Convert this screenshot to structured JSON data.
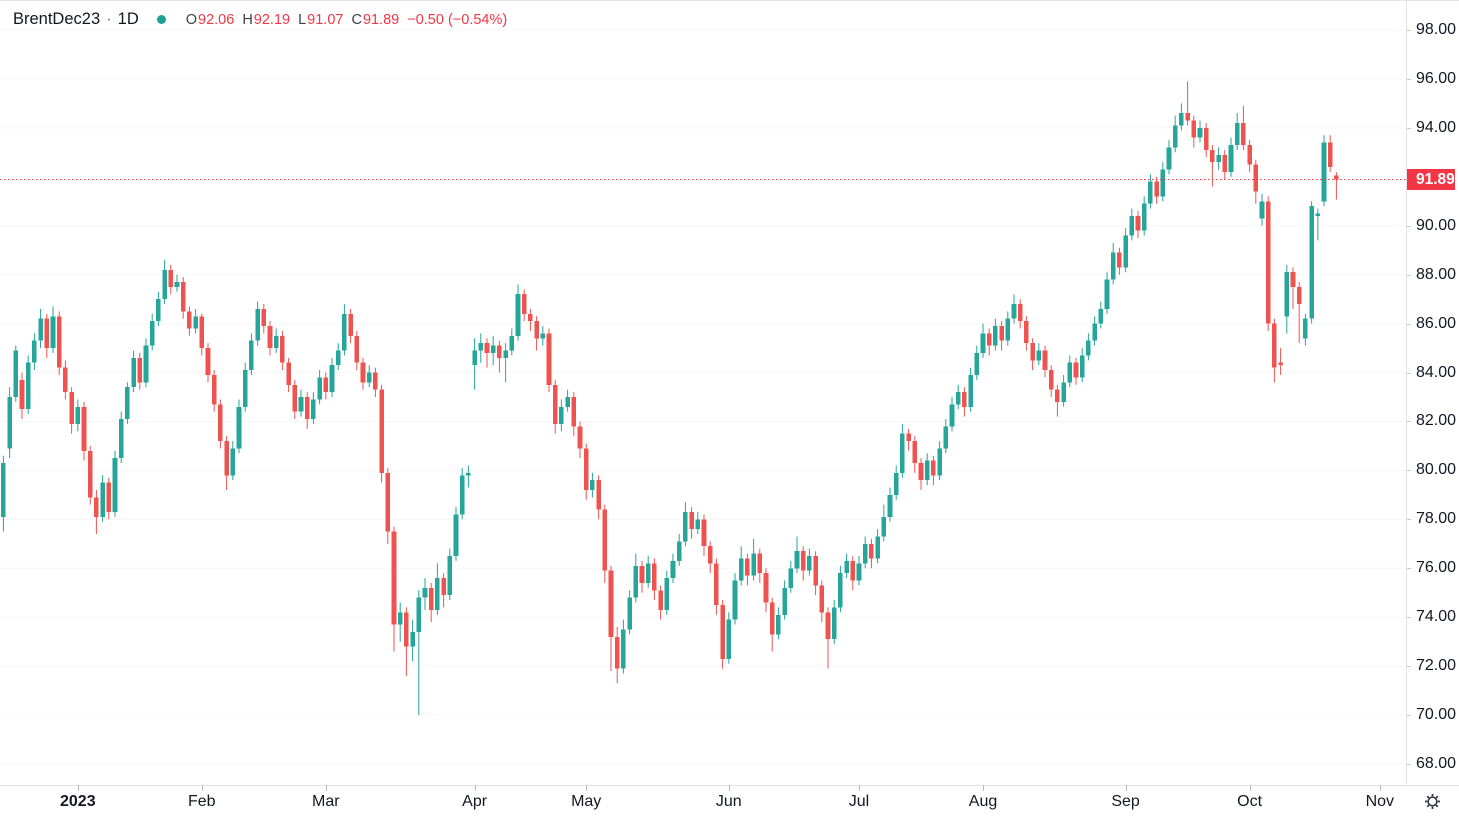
{
  "legend": {
    "title": "BrentDec23",
    "separator": "·",
    "timeframe": "1D",
    "ohlc": {
      "o_label": "O",
      "o_val": "92.06",
      "h_label": "H",
      "h_val": "92.19",
      "l_label": "L",
      "l_val": "91.07",
      "c_label": "C",
      "c_val": "91.89",
      "change": "−0.50",
      "change_pct": "(−0.54%)"
    }
  },
  "colors": {
    "up": "#26a69a",
    "down": "#ef5350",
    "negative_text": "#f23645",
    "last_price_bg": "#f23645",
    "axis_text": "#131722",
    "axis_border": "#e0e3eb",
    "grid": "#f6f7fa"
  },
  "price_axis": {
    "last_price_label": "91.89",
    "visible_levels": [
      98,
      96,
      94,
      90,
      88,
      86,
      84,
      82,
      80,
      78,
      76,
      74,
      72,
      70,
      68
    ]
  },
  "chart_data": {
    "type": "candlestick",
    "title": "BrentDec23 1D candlestick chart",
    "symbol": "BrentDec23",
    "timeframe": "1D",
    "last_price": 91.89,
    "y_axis": {
      "min": 68,
      "max": 98,
      "step": 2
    },
    "x_axis": {
      "ticks": [
        {
          "label": "2023",
          "index": 12,
          "bold": true
        },
        {
          "label": "Feb",
          "index": 32
        },
        {
          "label": "Mar",
          "index": 52
        },
        {
          "label": "Apr",
          "index": 76
        },
        {
          "label": "May",
          "index": 94
        },
        {
          "label": "Jun",
          "index": 117
        },
        {
          "label": "Jul",
          "index": 138
        },
        {
          "label": "Aug",
          "index": 158
        },
        {
          "label": "Sep",
          "index": 181
        },
        {
          "label": "Oct",
          "index": 201
        },
        {
          "label": "Nov",
          "index": 222
        }
      ]
    },
    "candles": [
      [
        78.1,
        80.6,
        77.5,
        80.3
      ],
      [
        80.9,
        83.4,
        80.5,
        83.0
      ],
      [
        83.0,
        85.1,
        82.8,
        84.9
      ],
      [
        83.7,
        84.0,
        82.1,
        82.5
      ],
      [
        82.5,
        84.7,
        82.3,
        84.4
      ],
      [
        84.4,
        85.6,
        84.1,
        85.3
      ],
      [
        85.3,
        86.6,
        85.0,
        86.2
      ],
      [
        86.2,
        86.4,
        84.6,
        85.0
      ],
      [
        85.0,
        86.7,
        84.8,
        86.3
      ],
      [
        86.3,
        86.5,
        83.9,
        84.2
      ],
      [
        84.2,
        84.5,
        82.9,
        83.2
      ],
      [
        83.2,
        83.4,
        81.5,
        81.9
      ],
      [
        81.9,
        82.9,
        81.6,
        82.6
      ],
      [
        82.6,
        82.8,
        80.4,
        80.8
      ],
      [
        80.8,
        81.0,
        78.6,
        78.9
      ],
      [
        78.9,
        79.2,
        77.4,
        78.1
      ],
      [
        78.1,
        79.8,
        77.9,
        79.5
      ],
      [
        79.5,
        79.7,
        78.0,
        78.3
      ],
      [
        78.3,
        80.8,
        78.1,
        80.5
      ],
      [
        80.5,
        82.4,
        80.3,
        82.1
      ],
      [
        82.1,
        83.6,
        81.9,
        83.4
      ],
      [
        83.4,
        84.9,
        83.2,
        84.6
      ],
      [
        84.6,
        84.8,
        83.3,
        83.6
      ],
      [
        83.6,
        85.4,
        83.4,
        85.1
      ],
      [
        85.1,
        86.4,
        84.9,
        86.1
      ],
      [
        86.1,
        87.3,
        85.9,
        87.0
      ],
      [
        87.0,
        88.6,
        86.8,
        88.2
      ],
      [
        88.2,
        88.4,
        87.2,
        87.5
      ],
      [
        87.5,
        88.0,
        87.3,
        87.7
      ],
      [
        87.7,
        87.9,
        86.2,
        86.5
      ],
      [
        86.5,
        86.7,
        85.5,
        85.8
      ],
      [
        85.8,
        86.6,
        85.6,
        86.3
      ],
      [
        86.3,
        86.4,
        84.7,
        85.0
      ],
      [
        85.0,
        85.2,
        83.6,
        83.9
      ],
      [
        83.9,
        84.1,
        82.4,
        82.7
      ],
      [
        82.7,
        82.9,
        80.9,
        81.2
      ],
      [
        81.2,
        81.4,
        79.2,
        79.8
      ],
      [
        79.8,
        81.2,
        79.6,
        80.9
      ],
      [
        80.9,
        82.9,
        80.7,
        82.6
      ],
      [
        82.6,
        84.4,
        82.4,
        84.1
      ],
      [
        84.1,
        85.6,
        83.9,
        85.3
      ],
      [
        85.3,
        86.9,
        85.1,
        86.6
      ],
      [
        86.6,
        86.8,
        85.6,
        85.9
      ],
      [
        85.9,
        86.1,
        84.7,
        85.0
      ],
      [
        85.0,
        85.8,
        84.8,
        85.5
      ],
      [
        85.5,
        85.7,
        84.1,
        84.4
      ],
      [
        84.4,
        84.6,
        83.2,
        83.5
      ],
      [
        83.5,
        83.7,
        82.1,
        82.4
      ],
      [
        82.4,
        83.3,
        82.2,
        83.0
      ],
      [
        83.0,
        83.2,
        81.7,
        82.1
      ],
      [
        82.1,
        83.2,
        81.9,
        82.9
      ],
      [
        82.9,
        84.1,
        82.7,
        83.8
      ],
      [
        83.8,
        84.0,
        82.9,
        83.2
      ],
      [
        83.2,
        84.6,
        83.0,
        84.3
      ],
      [
        84.3,
        85.2,
        84.1,
        84.9
      ],
      [
        84.9,
        86.8,
        84.7,
        86.4
      ],
      [
        86.4,
        86.6,
        85.2,
        85.5
      ],
      [
        85.5,
        85.7,
        84.1,
        84.4
      ],
      [
        84.4,
        84.6,
        83.3,
        83.6
      ],
      [
        83.6,
        84.3,
        83.4,
        84.0
      ],
      [
        84.0,
        84.2,
        83.0,
        83.3
      ],
      [
        83.3,
        83.5,
        79.5,
        79.9
      ],
      [
        79.9,
        80.1,
        77.0,
        77.5
      ],
      [
        77.5,
        77.7,
        72.6,
        73.7
      ],
      [
        73.7,
        74.6,
        73.0,
        74.2
      ],
      [
        74.2,
        74.4,
        71.6,
        72.8
      ],
      [
        72.8,
        73.9,
        72.2,
        73.4
      ],
      [
        73.4,
        75.1,
        70.0,
        74.8
      ],
      [
        74.8,
        75.6,
        74.3,
        75.2
      ],
      [
        75.2,
        75.4,
        73.8,
        74.3
      ],
      [
        74.3,
        76.2,
        74.1,
        75.6
      ],
      [
        75.6,
        75.8,
        74.4,
        74.9
      ],
      [
        74.9,
        76.8,
        74.7,
        76.5
      ],
      [
        76.5,
        78.5,
        76.3,
        78.2
      ],
      [
        78.2,
        80.1,
        78.0,
        79.8
      ],
      [
        79.8,
        80.2,
        79.3,
        79.9
      ],
      [
        84.3,
        85.4,
        83.3,
        84.9
      ],
      [
        84.9,
        85.6,
        84.4,
        85.2
      ],
      [
        85.2,
        85.4,
        84.2,
        84.8
      ],
      [
        84.8,
        85.5,
        84.3,
        85.1
      ],
      [
        85.1,
        85.3,
        84.0,
        84.6
      ],
      [
        84.6,
        85.2,
        83.6,
        84.9
      ],
      [
        84.9,
        85.8,
        84.7,
        85.5
      ],
      [
        85.5,
        87.6,
        85.3,
        87.2
      ],
      [
        87.2,
        87.4,
        86.1,
        86.4
      ],
      [
        86.4,
        86.6,
        85.7,
        86.1
      ],
      [
        86.1,
        86.3,
        84.9,
        85.4
      ],
      [
        85.4,
        85.9,
        85.1,
        85.6
      ],
      [
        85.6,
        85.8,
        83.2,
        83.5
      ],
      [
        83.5,
        83.7,
        81.5,
        81.9
      ],
      [
        81.9,
        82.9,
        81.6,
        82.6
      ],
      [
        82.6,
        83.3,
        82.4,
        83.0
      ],
      [
        83.0,
        83.2,
        81.4,
        81.8
      ],
      [
        81.8,
        82.0,
        80.5,
        80.9
      ],
      [
        80.9,
        81.1,
        78.8,
        79.2
      ],
      [
        79.2,
        79.9,
        78.9,
        79.6
      ],
      [
        79.6,
        79.8,
        78.0,
        78.4
      ],
      [
        78.4,
        78.6,
        75.4,
        75.9
      ],
      [
        75.9,
        76.1,
        71.8,
        73.2
      ],
      [
        73.2,
        73.6,
        71.3,
        71.9
      ],
      [
        71.9,
        73.9,
        71.7,
        73.5
      ],
      [
        73.5,
        75.1,
        73.3,
        74.8
      ],
      [
        74.8,
        76.6,
        74.6,
        76.1
      ],
      [
        76.1,
        76.3,
        75.0,
        75.4
      ],
      [
        75.4,
        76.5,
        75.2,
        76.2
      ],
      [
        76.2,
        76.4,
        74.7,
        75.1
      ],
      [
        75.1,
        75.3,
        73.9,
        74.3
      ],
      [
        74.3,
        75.9,
        74.1,
        75.6
      ],
      [
        75.6,
        76.6,
        75.4,
        76.3
      ],
      [
        76.3,
        77.4,
        76.1,
        77.1
      ],
      [
        77.1,
        78.7,
        76.9,
        78.3
      ],
      [
        78.3,
        78.5,
        77.2,
        77.6
      ],
      [
        77.6,
        78.3,
        77.4,
        78.0
      ],
      [
        78.0,
        78.2,
        76.5,
        76.9
      ],
      [
        76.9,
        77.1,
        75.8,
        76.2
      ],
      [
        76.2,
        76.4,
        74.1,
        74.5
      ],
      [
        74.5,
        74.7,
        71.9,
        72.3
      ],
      [
        72.3,
        74.2,
        72.1,
        73.9
      ],
      [
        73.9,
        75.8,
        73.7,
        75.5
      ],
      [
        75.5,
        76.9,
        75.3,
        76.4
      ],
      [
        76.4,
        76.6,
        75.3,
        75.7
      ],
      [
        75.7,
        77.2,
        75.5,
        76.6
      ],
      [
        76.6,
        76.8,
        75.4,
        75.8
      ],
      [
        75.8,
        76.0,
        74.2,
        74.6
      ],
      [
        74.6,
        74.8,
        72.6,
        73.3
      ],
      [
        73.3,
        74.4,
        73.1,
        74.1
      ],
      [
        74.1,
        75.5,
        73.9,
        75.2
      ],
      [
        75.2,
        76.3,
        75.0,
        76.0
      ],
      [
        76.0,
        77.3,
        75.8,
        76.7
      ],
      [
        76.7,
        76.9,
        75.5,
        75.9
      ],
      [
        75.9,
        76.8,
        75.7,
        76.5
      ],
      [
        76.5,
        76.7,
        74.9,
        75.3
      ],
      [
        75.3,
        75.5,
        73.8,
        74.2
      ],
      [
        74.2,
        74.4,
        71.9,
        73.1
      ],
      [
        73.1,
        74.7,
        72.9,
        74.4
      ],
      [
        74.4,
        76.1,
        74.2,
        75.8
      ],
      [
        75.8,
        76.6,
        75.6,
        76.3
      ],
      [
        76.3,
        76.5,
        75.1,
        75.5
      ],
      [
        75.5,
        76.5,
        75.3,
        76.2
      ],
      [
        76.2,
        77.3,
        76.0,
        77.0
      ],
      [
        77.0,
        77.2,
        76.0,
        76.4
      ],
      [
        76.4,
        77.6,
        76.2,
        77.3
      ],
      [
        77.3,
        78.6,
        77.1,
        78.1
      ],
      [
        78.1,
        79.3,
        77.9,
        79.0
      ],
      [
        79.0,
        80.2,
        78.8,
        79.9
      ],
      [
        79.9,
        81.9,
        79.7,
        81.5
      ],
      [
        81.5,
        81.7,
        80.8,
        81.2
      ],
      [
        81.2,
        81.4,
        79.9,
        80.3
      ],
      [
        80.3,
        80.5,
        79.2,
        79.6
      ],
      [
        79.6,
        80.7,
        79.4,
        80.4
      ],
      [
        80.4,
        80.6,
        79.4,
        79.8
      ],
      [
        79.8,
        81.2,
        79.6,
        80.9
      ],
      [
        80.9,
        82.1,
        80.7,
        81.8
      ],
      [
        81.8,
        83.0,
        81.6,
        82.7
      ],
      [
        82.7,
        83.5,
        82.5,
        83.2
      ],
      [
        83.2,
        83.4,
        82.2,
        82.6
      ],
      [
        82.6,
        84.2,
        82.4,
        83.9
      ],
      [
        83.9,
        85.1,
        83.7,
        84.8
      ],
      [
        84.8,
        86.0,
        84.6,
        85.6
      ],
      [
        85.6,
        85.8,
        84.7,
        85.1
      ],
      [
        85.1,
        86.2,
        84.9,
        85.9
      ],
      [
        85.9,
        86.1,
        84.9,
        85.3
      ],
      [
        85.3,
        86.5,
        85.1,
        86.2
      ],
      [
        86.2,
        87.2,
        86.0,
        86.8
      ],
      [
        86.8,
        87.0,
        85.8,
        86.1
      ],
      [
        86.1,
        86.3,
        84.9,
        85.2
      ],
      [
        85.2,
        85.4,
        84.1,
        84.5
      ],
      [
        84.5,
        85.2,
        84.3,
        84.9
      ],
      [
        84.9,
        85.1,
        83.8,
        84.1
      ],
      [
        84.1,
        84.3,
        83.0,
        83.3
      ],
      [
        83.3,
        83.5,
        82.2,
        82.8
      ],
      [
        82.8,
        83.9,
        82.6,
        83.6
      ],
      [
        83.6,
        84.7,
        83.4,
        84.4
      ],
      [
        84.4,
        84.6,
        83.5,
        83.8
      ],
      [
        83.8,
        85.0,
        83.6,
        84.7
      ],
      [
        84.7,
        85.6,
        84.5,
        85.3
      ],
      [
        85.3,
        86.3,
        85.1,
        86.0
      ],
      [
        86.0,
        86.9,
        85.8,
        86.6
      ],
      [
        86.6,
        88.1,
        86.4,
        87.8
      ],
      [
        87.8,
        89.3,
        87.6,
        88.9
      ],
      [
        88.9,
        89.1,
        88.0,
        88.3
      ],
      [
        88.3,
        89.9,
        88.1,
        89.6
      ],
      [
        89.6,
        90.7,
        89.4,
        90.4
      ],
      [
        90.4,
        90.6,
        89.5,
        89.8
      ],
      [
        89.8,
        91.2,
        89.6,
        90.9
      ],
      [
        90.9,
        92.1,
        90.7,
        91.8
      ],
      [
        91.8,
        92.0,
        90.9,
        91.2
      ],
      [
        91.2,
        92.6,
        91.0,
        92.3
      ],
      [
        92.3,
        93.5,
        92.1,
        93.2
      ],
      [
        93.2,
        94.5,
        93.0,
        94.1
      ],
      [
        94.1,
        95.0,
        93.9,
        94.6
      ],
      [
        94.6,
        95.9,
        94.1,
        94.3
      ],
      [
        94.3,
        94.5,
        93.2,
        93.6
      ],
      [
        93.6,
        94.3,
        93.4,
        94.0
      ],
      [
        94.0,
        94.2,
        92.8,
        93.1
      ],
      [
        93.1,
        93.3,
        91.6,
        92.6
      ],
      [
        92.6,
        93.2,
        92.3,
        92.9
      ],
      [
        92.9,
        93.1,
        91.9,
        92.2
      ],
      [
        92.2,
        93.6,
        92.0,
        93.3
      ],
      [
        93.3,
        94.6,
        93.1,
        94.2
      ],
      [
        94.2,
        94.9,
        93.1,
        93.3
      ],
      [
        93.3,
        93.5,
        92.2,
        92.5
      ],
      [
        92.5,
        92.7,
        90.9,
        91.4
      ],
      [
        90.3,
        91.3,
        90.0,
        91.0
      ],
      [
        91.0,
        91.2,
        85.7,
        86.0
      ],
      [
        86.0,
        86.2,
        83.6,
        84.2
      ],
      [
        84.4,
        85.0,
        83.9,
        84.3
      ],
      [
        86.3,
        88.4,
        85.6,
        88.1
      ],
      [
        88.1,
        88.3,
        86.6,
        87.5
      ],
      [
        87.5,
        87.7,
        85.2,
        86.8
      ],
      [
        85.4,
        86.4,
        85.1,
        86.2
      ],
      [
        86.2,
        91.0,
        86.0,
        90.8
      ],
      [
        90.4,
        90.7,
        89.4,
        90.5
      ],
      [
        91.0,
        93.7,
        90.8,
        93.4
      ],
      [
        93.4,
        93.7,
        92.2,
        92.4
      ],
      [
        92.06,
        92.19,
        91.07,
        91.89
      ]
    ]
  }
}
